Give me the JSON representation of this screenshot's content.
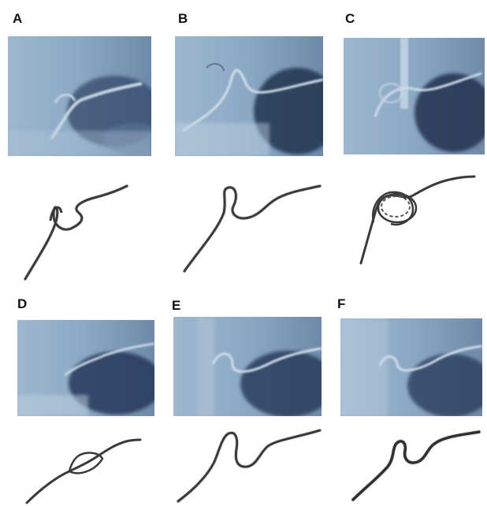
{
  "figure": {
    "panels": [
      {
        "label": "A"
      },
      {
        "label": "B"
      },
      {
        "label": "C"
      },
      {
        "label": "D"
      },
      {
        "label": "E"
      },
      {
        "label": "F"
      }
    ],
    "colors": {
      "xray_light": "#a9c1d6",
      "xray_mid": "#7d9bb8",
      "xray_dark": "#2f425e",
      "wire": "#3a3a3a"
    }
  }
}
